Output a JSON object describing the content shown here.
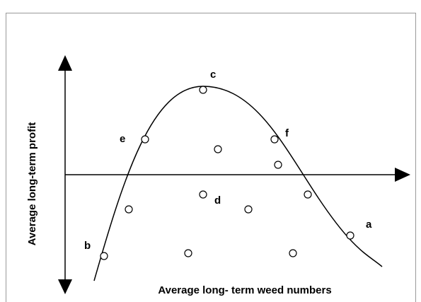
{
  "axes": {
    "y_label": "Average long-term profit",
    "x_label": "Average long- term weed numbers"
  },
  "points": [
    {
      "label": "a"
    },
    {
      "label": "b"
    },
    {
      "label": "c"
    },
    {
      "label": "d"
    },
    {
      "label": "e"
    },
    {
      "label": "f"
    }
  ]
}
